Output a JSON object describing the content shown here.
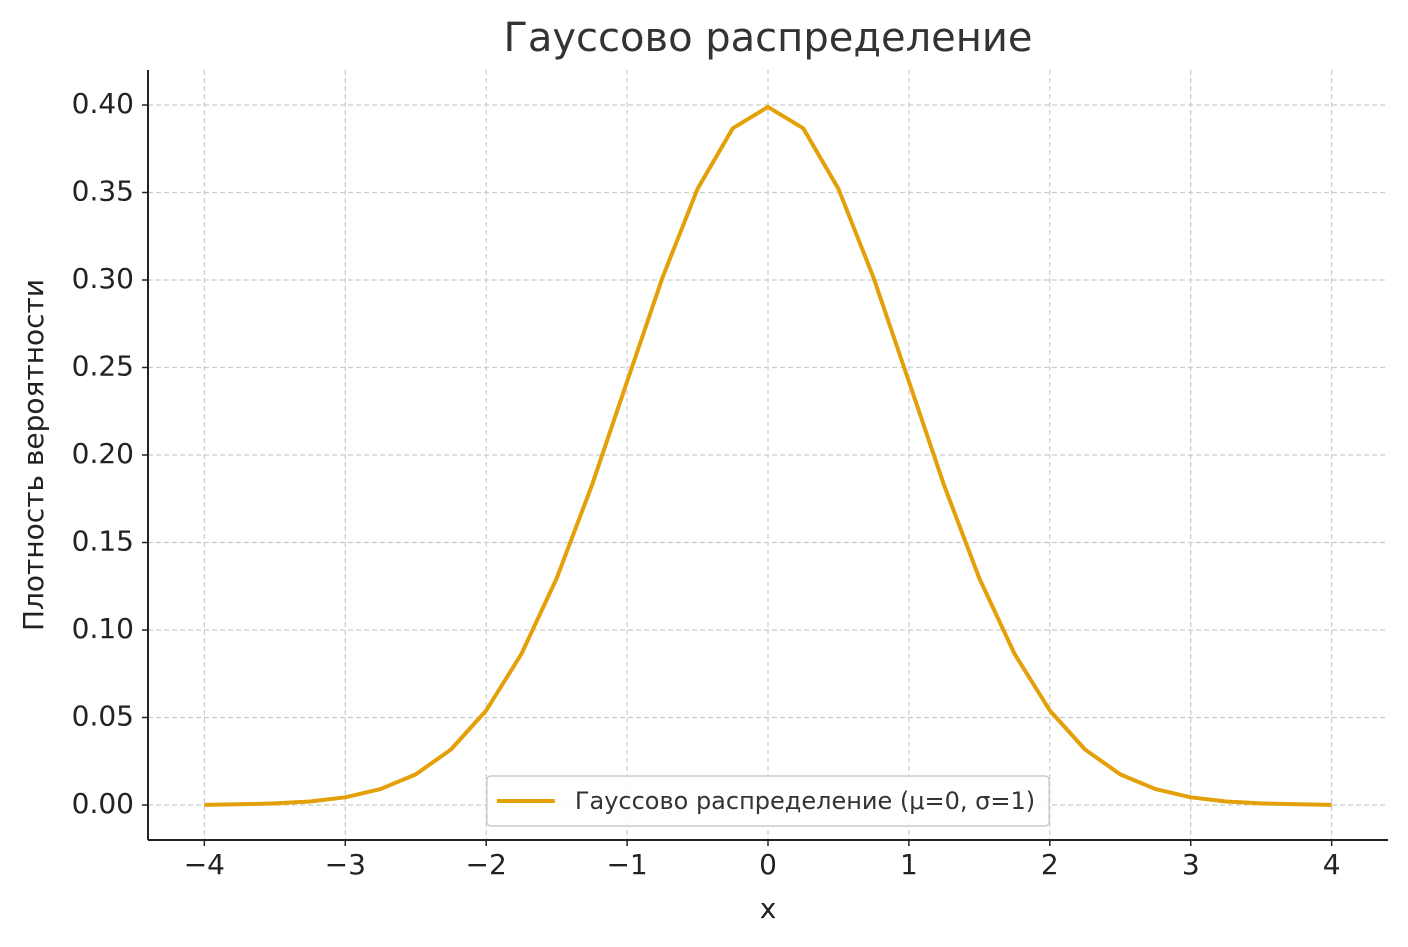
{
  "chart_data": {
    "type": "line",
    "title": "Гауссово распределение",
    "xlabel": "x",
    "ylabel": "Плотность вероятности",
    "x": [
      -4,
      -3.75,
      -3.5,
      -3.25,
      -3,
      -2.75,
      -2.5,
      -2.25,
      -2,
      -1.75,
      -1.5,
      -1.25,
      -1,
      -0.75,
      -0.5,
      -0.25,
      0,
      0.25,
      0.5,
      0.75,
      1,
      1.25,
      1.5,
      1.75,
      2,
      2.25,
      2.5,
      2.75,
      3,
      3.25,
      3.5,
      3.75,
      4
    ],
    "series": [
      {
        "name": "Гауссово распределение (μ=0, σ=1)",
        "color": "#e3a008",
        "values": [
          0.0001,
          0.0004,
          0.0009,
          0.002,
          0.0044,
          0.0091,
          0.0175,
          0.0317,
          0.054,
          0.0863,
          0.1295,
          0.1826,
          0.242,
          0.3011,
          0.3521,
          0.3867,
          0.3989,
          0.3867,
          0.3521,
          0.3011,
          0.242,
          0.1826,
          0.1295,
          0.0863,
          0.054,
          0.0317,
          0.0175,
          0.0091,
          0.0044,
          0.002,
          0.0009,
          0.0004,
          0.0001
        ]
      }
    ],
    "xlim": [
      -4.4,
      4.4
    ],
    "ylim": [
      -0.02,
      0.42
    ],
    "xticks": [
      {
        "value": -4,
        "label": "−4"
      },
      {
        "value": -3,
        "label": "−3"
      },
      {
        "value": -2,
        "label": "−2"
      },
      {
        "value": -1,
        "label": "−1"
      },
      0,
      1,
      2,
      3,
      4
    ],
    "yticks": [
      {
        "value": 0,
        "label": "0.00"
      },
      {
        "value": 0.05,
        "label": "0.05"
      },
      {
        "value": 0.1,
        "label": "0.10"
      },
      {
        "value": 0.15,
        "label": "0.15"
      },
      {
        "value": 0.2,
        "label": "0.20"
      },
      {
        "value": 0.25,
        "label": "0.25"
      },
      {
        "value": 0.3,
        "label": "0.30"
      },
      {
        "value": 0.35,
        "label": "0.35"
      },
      {
        "value": 0.4,
        "label": "0.40"
      }
    ],
    "grid": true,
    "legend": "lower center"
  }
}
